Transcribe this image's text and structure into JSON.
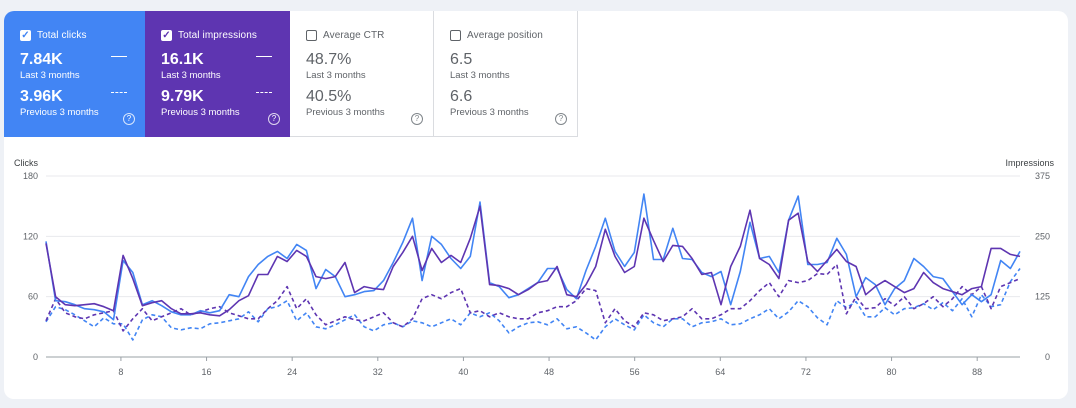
{
  "metrics": [
    {
      "label": "Total clicks",
      "checked": true,
      "value1": "7.84K",
      "sub1": "Last 3 months",
      "value2": "3.96K",
      "sub2": "Previous 3 months"
    },
    {
      "label": "Total impressions",
      "checked": true,
      "value1": "16.1K",
      "sub1": "Last 3 months",
      "value2": "9.79K",
      "sub2": "Previous 3 months"
    },
    {
      "label": "Average CTR",
      "checked": false,
      "value1": "48.7%",
      "sub1": "Last 3 months",
      "value2": "40.5%",
      "sub2": "Previous 3 months"
    },
    {
      "label": "Average position",
      "checked": false,
      "value1": "6.5",
      "sub1": "Last 3 months",
      "value2": "6.6",
      "sub2": "Previous 3 months"
    }
  ],
  "help_glyph": "?",
  "check_glyph": "✓",
  "chart_data": {
    "type": "line",
    "ylabel_left": "Clicks",
    "ylabel_right": "Impressions",
    "left_ticks": [
      "0",
      "60",
      "120",
      "180"
    ],
    "right_ticks": [
      "0",
      "125",
      "250",
      "375"
    ],
    "left_range": [
      0,
      180
    ],
    "right_range": [
      0,
      375
    ],
    "x_ticks": [
      "8",
      "16",
      "24",
      "32",
      "40",
      "48",
      "56",
      "64",
      "72",
      "80",
      "88"
    ],
    "x_range": [
      1,
      92
    ],
    "grid": true,
    "colors": {
      "clicks": "#4285f4",
      "impressions": "#5e35b1"
    },
    "series": [
      {
        "metric": "clicks",
        "period": "last 3 months",
        "style": "solid",
        "axis": "left",
        "values": [
          115,
          56,
          55,
          52,
          48,
          47,
          45,
          37,
          96,
          84,
          52,
          56,
          51,
          45,
          42,
          42,
          46,
          44,
          46,
          62,
          60,
          80,
          92,
          100,
          105,
          98,
          112,
          106,
          68,
          87,
          80,
          60,
          62,
          65,
          66,
          76,
          94,
          114,
          138,
          76,
          120,
          112,
          98,
          88,
          100,
          154,
          74,
          70,
          59,
          62,
          68,
          74,
          88,
          88,
          67,
          58,
          86,
          110,
          138,
          105,
          90,
          104,
          162,
          97,
          97,
          128,
          98,
          97,
          84,
          80,
          85,
          52,
          85,
          134,
          98,
          100,
          84,
          136,
          160,
          92,
          92,
          94,
          118,
          102,
          60,
          79,
          72,
          52,
          68,
          76,
          98,
          90,
          80,
          78,
          65,
          52,
          62,
          55,
          62,
          96,
          88,
          105
        ]
      },
      {
        "metric": "impressions",
        "period": "last 3 months",
        "style": "solid",
        "axis": "left",
        "values": [
          113,
          60,
          52,
          51,
          52,
          53,
          50,
          46,
          101,
          78,
          51,
          54,
          56,
          48,
          43,
          43,
          44,
          42,
          41,
          47,
          56,
          61,
          82,
          82,
          100,
          95,
          106,
          100,
          80,
          78,
          80,
          94,
          64,
          70,
          68,
          67,
          90,
          104,
          120,
          86,
          108,
          94,
          101,
          94,
          118,
          150,
          72,
          71,
          68,
          62,
          67,
          74,
          76,
          90,
          62,
          60,
          72,
          90,
          127,
          100,
          84,
          90,
          138,
          116,
          95,
          111,
          110,
          98,
          82,
          84,
          52,
          90,
          110,
          146,
          98,
          92,
          78,
          136,
          143,
          95,
          85,
          96,
          107,
          95,
          90,
          62,
          70,
          76,
          70,
          64,
          68,
          84,
          74,
          68,
          65,
          62,
          68,
          70,
          108,
          108,
          102,
          100
        ]
      },
      {
        "metric": "clicks",
        "period": "previous 3 months",
        "style": "dashed",
        "axis": "left",
        "values": [
          35,
          50,
          47,
          42,
          36,
          30,
          39,
          33,
          33,
          17,
          37,
          42,
          40,
          29,
          27,
          29,
          28,
          33,
          34,
          36,
          38,
          45,
          35,
          48,
          50,
          56,
          36,
          44,
          30,
          28,
          32,
          37,
          42,
          30,
          26,
          32,
          34,
          30,
          36,
          34,
          30,
          34,
          38,
          32,
          44,
          40,
          44,
          36,
          24,
          30,
          34,
          35,
          32,
          38,
          28,
          30,
          24,
          17,
          30,
          38,
          32,
          27,
          42,
          34,
          30,
          38,
          38,
          30,
          34,
          35,
          38,
          32,
          33,
          38,
          42,
          48,
          38,
          45,
          56,
          50,
          39,
          32,
          56,
          49,
          55,
          40,
          40,
          49,
          42,
          48,
          49,
          53,
          47,
          54,
          46,
          58,
          40,
          62,
          50,
          52,
          75,
          88
        ]
      },
      {
        "metric": "impressions",
        "period": "previous 3 months",
        "style": "dashed",
        "axis": "left",
        "values": [
          36,
          58,
          44,
          40,
          38,
          42,
          44,
          46,
          26,
          38,
          48,
          36,
          40,
          44,
          48,
          42,
          45,
          48,
          50,
          44,
          41,
          38,
          38,
          48,
          56,
          70,
          48,
          58,
          42,
          32,
          36,
          40,
          37,
          36,
          40,
          44,
          34,
          30,
          38,
          58,
          62,
          58,
          64,
          68,
          44,
          46,
          40,
          44,
          40,
          38,
          38,
          44,
          46,
          50,
          50,
          56,
          68,
          66,
          34,
          48,
          36,
          30,
          44,
          42,
          36,
          38,
          40,
          48,
          38,
          38,
          42,
          48,
          48,
          56,
          66,
          74,
          60,
          76,
          74,
          76,
          83,
          82,
          92,
          43,
          60,
          48,
          49,
          58,
          51,
          60,
          48,
          53,
          60,
          50,
          58,
          70,
          62,
          70,
          48,
          70,
          74,
          78
        ]
      }
    ]
  }
}
